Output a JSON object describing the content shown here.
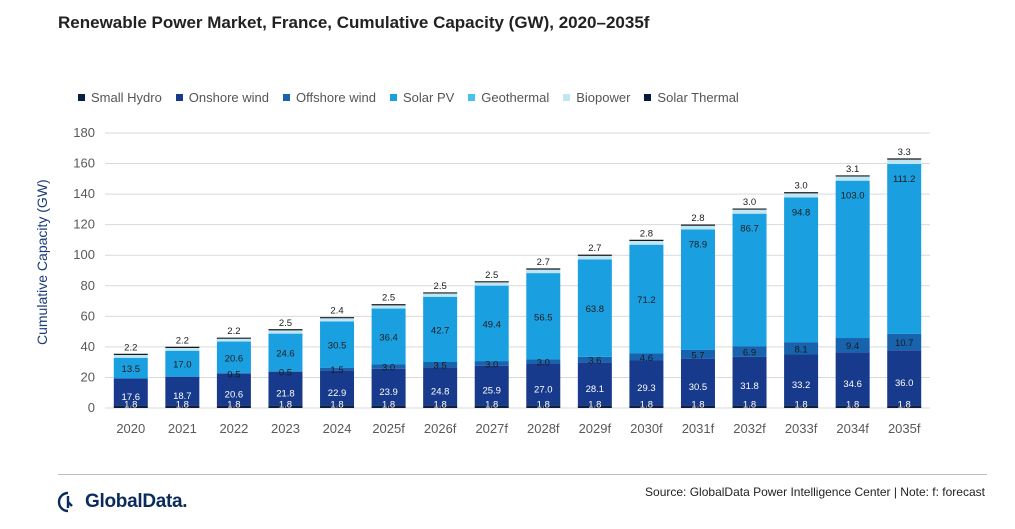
{
  "header": {
    "title": "Renewable Power Market, France, Cumulative Capacity (GW), 2020–2035f"
  },
  "footer": {
    "source": "Source: GlobalData Power Intelligence Center | Note: f: forecast",
    "brand": "GlobalData."
  },
  "colors": {
    "small_hydro": "#0b1e45",
    "onshore_wind": "#173a8c",
    "offshore_wind": "#1763ad",
    "solar_pv": "#1aa0e0",
    "geothermal": "#47c1ee",
    "biopower": "#bfe6f7",
    "solar_thermal": "#0a1a3d"
  },
  "chart_data": {
    "type": "bar",
    "stacked": true,
    "title": "Renewable Power Market, France, Cumulative Capacity (GW), 2020–2035f",
    "xlabel": "",
    "ylabel": "Cumulative Capacity (GW)",
    "ylim": [
      0,
      180
    ],
    "yticks": [
      0,
      20,
      40,
      60,
      80,
      100,
      120,
      140,
      160,
      180
    ],
    "grid": true,
    "legend": "top",
    "categories": [
      "2020",
      "2021",
      "2022",
      "2023",
      "2024",
      "2025f",
      "2026f",
      "2027f",
      "2028f",
      "2029f",
      "2030f",
      "2031f",
      "2032f",
      "2033f",
      "2034f",
      "2035f"
    ],
    "series": [
      {
        "name": "Small Hydro",
        "color": "#0b1e45",
        "values": [
          1.8,
          1.8,
          1.8,
          1.8,
          1.8,
          1.8,
          1.8,
          1.8,
          1.8,
          1.8,
          1.8,
          1.8,
          1.8,
          1.8,
          1.8,
          1.8
        ]
      },
      {
        "name": "Onshore wind",
        "color": "#173a8c",
        "values": [
          17.6,
          18.7,
          20.6,
          21.8,
          22.9,
          23.9,
          24.8,
          25.9,
          27.0,
          28.1,
          29.3,
          30.5,
          31.8,
          33.2,
          34.6,
          36.0
        ]
      },
      {
        "name": "Offshore wind",
        "color": "#1763ad",
        "values": [
          0,
          0,
          0.5,
          0.5,
          1.5,
          3.0,
          3.5,
          3.0,
          3.0,
          3.6,
          4.6,
          5.7,
          6.9,
          8.1,
          9.4,
          10.7
        ]
      },
      {
        "name": "Solar PV",
        "color": "#1aa0e0",
        "values": [
          13.5,
          17.0,
          20.6,
          24.6,
          30.5,
          36.4,
          42.7,
          49.4,
          56.5,
          63.8,
          71.2,
          78.9,
          86.7,
          94.8,
          103.0,
          111.2
        ]
      },
      {
        "name": "Geothermal",
        "color": "#47c1ee",
        "values": [
          0,
          0,
          0,
          0,
          0,
          0,
          0,
          0,
          0,
          0,
          0,
          0,
          0,
          0,
          0,
          0
        ]
      },
      {
        "name": "Biopower",
        "color": "#bfe6f7",
        "values": [
          2.2,
          2.2,
          2.2,
          2.5,
          2.4,
          2.5,
          2.5,
          2.5,
          2.7,
          2.7,
          2.8,
          2.8,
          3.0,
          3.0,
          3.1,
          3.3
        ]
      },
      {
        "name": "Solar Thermal",
        "color": "#0a1a3d",
        "values": [
          0,
          0,
          0,
          0,
          0,
          0,
          0,
          0,
          0,
          0,
          0,
          0,
          0,
          0,
          0,
          0
        ]
      }
    ],
    "data_labels": {
      "Small Hydro": [
        "1.8",
        "1.8",
        "1.8",
        "1.8",
        "1.8",
        "1.8",
        "1.8",
        "1.8",
        "1.8",
        "1.8",
        "1.8",
        "1.8",
        "1.8",
        "1.8",
        "1.8",
        "1.8"
      ],
      "Onshore wind": [
        "17.6",
        "18.7",
        "20.6",
        "21.8",
        "22.9",
        "23.9",
        "24.8",
        "25.9",
        "27.0",
        "28.1",
        "29.3",
        "30.5",
        "31.8",
        "33.2",
        "34.6",
        "36.0"
      ],
      "Offshore wind": [
        "",
        "",
        "0.5",
        "0.5",
        "1.5",
        "3.0",
        "3.5",
        "3.0",
        "3.0",
        "3.6",
        "4.6",
        "5.7",
        "6.9",
        "8.1",
        "9.4",
        "10.7"
      ],
      "Solar PV": [
        "13.5",
        "17.0",
        "20.6",
        "24.6",
        "30.5",
        "36.4",
        "42.7",
        "49.4",
        "56.5",
        "63.8",
        "71.2",
        "78.9",
        "86.7",
        "94.8",
        "103.0",
        "111.2"
      ],
      "Biopower": [
        "2.2",
        "2.2",
        "2.2",
        "2.5",
        "2.4",
        "2.5",
        "2.5",
        "2.5",
        "2.7",
        "2.7",
        "2.8",
        "2.8",
        "3.0",
        "3.0",
        "3.1",
        "3.3"
      ]
    }
  }
}
